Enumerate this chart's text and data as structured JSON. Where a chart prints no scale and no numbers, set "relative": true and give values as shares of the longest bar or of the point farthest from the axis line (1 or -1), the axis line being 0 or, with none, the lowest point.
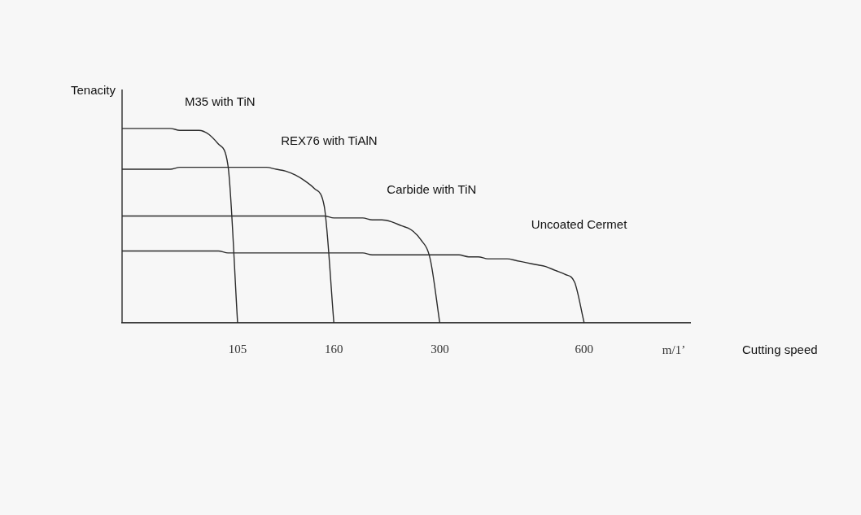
{
  "chart_data": {
    "type": "line",
    "relative": true,
    "xlabel": "Cutting speed",
    "ylabel": "Tenacity",
    "annotations": [
      "m/1’"
    ],
    "categories": [
      null,
      null,
      null,
      null,
      null,
      null,
      null,
      null,
      null,
      null,
      null,
      null,
      "105",
      null,
      null,
      null,
      null,
      null,
      null,
      null,
      null,
      null,
      "160",
      null,
      null,
      null,
      null,
      null,
      null,
      null,
      null,
      null,
      null,
      "300",
      null,
      null,
      null,
      null,
      null,
      null,
      null,
      null,
      null,
      null,
      null,
      null,
      null,
      null,
      "600",
      null,
      null,
      null,
      null,
      null,
      null,
      null,
      null,
      null,
      null,
      null
    ],
    "series": [
      {
        "name": "M35 with TiN",
        "color": "#2b2b2b",
        "values": [
          1,
          1,
          1,
          1,
          1,
          1,
          0.99,
          0.99,
          0.99,
          0.97,
          0.92,
          0.81,
          0,
          null,
          null,
          null,
          null,
          null,
          null,
          null,
          null,
          null,
          null,
          null,
          null,
          null,
          null,
          null,
          null,
          null,
          null,
          null,
          null,
          null,
          null,
          null,
          null,
          null,
          null,
          null,
          null,
          null,
          null,
          null,
          null,
          null,
          null,
          null,
          null,
          null,
          null,
          null,
          null,
          null,
          null,
          null,
          null,
          null,
          null,
          null
        ]
      },
      {
        "name": "REX76 with TiAlN",
        "color": "#2b2b2b",
        "values": [
          0.79,
          0.79,
          0.79,
          0.79,
          0.79,
          0.79,
          0.8,
          0.8,
          0.8,
          0.8,
          0.8,
          0.8,
          0.8,
          0.8,
          0.8,
          0.8,
          0.79,
          0.78,
          0.76,
          0.73,
          0.69,
          0.6,
          0,
          null,
          null,
          null,
          null,
          null,
          null,
          null,
          null,
          null,
          null,
          null,
          null,
          null,
          null,
          null,
          null,
          null,
          null,
          null,
          null,
          null,
          null,
          null,
          null,
          null,
          null,
          null,
          null,
          null,
          null,
          null,
          null,
          null,
          null,
          null,
          null,
          null
        ]
      },
      {
        "name": "Carbide with TiN",
        "color": "#2b2b2b",
        "values": [
          0.55,
          0.55,
          0.55,
          0.55,
          0.55,
          0.55,
          0.55,
          0.55,
          0.55,
          0.55,
          0.55,
          0.55,
          0.55,
          0.55,
          0.55,
          0.55,
          0.55,
          0.55,
          0.55,
          0.55,
          0.55,
          0.55,
          0.54,
          0.54,
          0.54,
          0.54,
          0.53,
          0.53,
          0.52,
          0.5,
          0.48,
          0.43,
          0.33,
          0,
          null,
          null,
          null,
          null,
          null,
          null,
          null,
          null,
          null,
          null,
          null,
          null,
          null,
          null,
          null,
          null,
          null,
          null,
          null,
          null,
          null,
          null,
          null,
          null,
          null,
          null
        ]
      },
      {
        "name": "Uncoated Cermet",
        "color": "#2b2b2b",
        "values": [
          0.37,
          0.37,
          0.37,
          0.37,
          0.37,
          0.37,
          0.37,
          0.37,
          0.37,
          0.37,
          0.37,
          0.36,
          0.36,
          0.36,
          0.36,
          0.36,
          0.36,
          0.36,
          0.36,
          0.36,
          0.36,
          0.36,
          0.36,
          0.36,
          0.36,
          0.36,
          0.35,
          0.35,
          0.35,
          0.35,
          0.35,
          0.35,
          0.35,
          0.35,
          0.35,
          0.35,
          0.34,
          0.34,
          0.33,
          0.33,
          0.33,
          0.32,
          0.31,
          0.3,
          0.29,
          0.27,
          0.25,
          0.21,
          0,
          null,
          null,
          null,
          null,
          null,
          null,
          null,
          null,
          null,
          null,
          null
        ]
      }
    ]
  }
}
